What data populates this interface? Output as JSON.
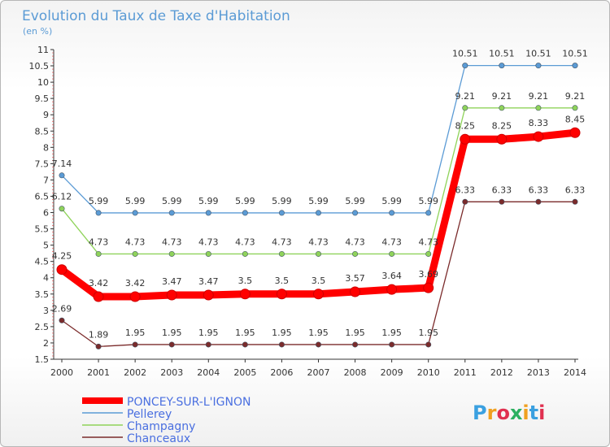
{
  "chart_data": {
    "type": "line",
    "title": "Evolution du Taux de Taxe d'Habitation",
    "subtitle": "(en %)",
    "x": [
      "2000",
      "2001",
      "2002",
      "2003",
      "2004",
      "2005",
      "2006",
      "2007",
      "2008",
      "2009",
      "2010",
      "2011",
      "2012",
      "2013",
      "2014"
    ],
    "y_ticks": [
      "1.5",
      "2",
      "2.5",
      "3",
      "3.5",
      "4",
      "4.5",
      "5",
      "5.5",
      "6",
      "6.5",
      "7",
      "7.5",
      "8",
      "8.5",
      "9",
      "9.5",
      "10",
      "10.5",
      "11"
    ],
    "ylim": [
      1.5,
      11
    ],
    "grid": false,
    "legend_position": "bottom-left",
    "series": [
      {
        "name": "PONCEY-SUR-L'IGNON",
        "color": "#ff0000",
        "values": [
          4.25,
          3.42,
          3.42,
          3.47,
          3.47,
          3.5,
          3.5,
          3.5,
          3.57,
          3.64,
          3.69,
          8.25,
          8.25,
          8.33,
          8.45
        ],
        "labels": [
          "4.25",
          "3.42",
          "3.42",
          "3.47",
          "3.47",
          "3.5",
          "3.5",
          "3.5",
          "3.57",
          "3.64",
          "3.69",
          "8.25",
          "8.25",
          "8.33",
          "8.45"
        ]
      },
      {
        "name": "Pellerey",
        "color": "#5b9bd5",
        "values": [
          7.14,
          5.99,
          5.99,
          5.99,
          5.99,
          5.99,
          5.99,
          5.99,
          5.99,
          5.99,
          5.99,
          10.51,
          10.51,
          10.51,
          10.51
        ],
        "labels": [
          "7.14",
          "5.99",
          "5.99",
          "5.99",
          "5.99",
          "5.99",
          "5.99",
          "5.99",
          "5.99",
          "5.99",
          "5.99",
          "10.51",
          "10.51",
          "10.51",
          "10.51"
        ]
      },
      {
        "name": "Champagny",
        "color": "#8fd35a",
        "values": [
          6.12,
          4.73,
          4.73,
          4.73,
          4.73,
          4.73,
          4.73,
          4.73,
          4.73,
          4.73,
          4.73,
          9.21,
          9.21,
          9.21,
          9.21
        ],
        "labels": [
          "6.12",
          "4.73",
          "4.73",
          "4.73",
          "4.73",
          "4.73",
          "4.73",
          "4.73",
          "4.73",
          "4.73",
          "4.73",
          "9.21",
          "9.21",
          "9.21",
          "9.21"
        ]
      },
      {
        "name": "Chanceaux",
        "color": "#7b2b2b",
        "values": [
          2.69,
          1.89,
          1.95,
          1.95,
          1.95,
          1.95,
          1.95,
          1.95,
          1.95,
          1.95,
          1.95,
          6.33,
          6.33,
          6.33,
          6.33
        ],
        "labels": [
          "2.69",
          "1.89",
          "1.95",
          "1.95",
          "1.95",
          "1.95",
          "1.95",
          "1.95",
          "1.95",
          "1.95",
          "1.95",
          "6.33",
          "6.33",
          "6.33",
          "6.33"
        ]
      }
    ]
  },
  "branding": {
    "logo_text": "Proxiti",
    "logo_colors": [
      "#3aa0e0",
      "#f0a020",
      "#e03050",
      "#2bb060",
      "#f0a020",
      "#3aa0e0",
      "#e03050"
    ]
  }
}
